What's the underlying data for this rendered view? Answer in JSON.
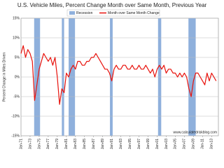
{
  "chart_data": {
    "type": "line",
    "title": "U.S. Vehicle Miles,  Percent Change Month over Same Month, Previous Year",
    "y_label": "Percent Change in Miles Driven",
    "source": "www.calculatedriskblog.com",
    "recession_name": "Recession",
    "recession_color": "#8fb0dc",
    "recessions": [
      [
        1973.9,
        1975.2
      ],
      [
        1980.0,
        1980.5
      ],
      [
        1981.5,
        1982.9
      ],
      [
        1990.6,
        1991.2
      ],
      [
        2001.2,
        2001.9
      ],
      [
        2007.9,
        2009.5
      ]
    ],
    "x": [
      1971,
      1971.5,
      1972,
      1972.5,
      1973,
      1973.5,
      1974,
      1974.5,
      1975,
      1975.5,
      1976,
      1976.5,
      1977,
      1977.5,
      1978,
      1978.5,
      1979,
      1979.5,
      1980,
      1980.5,
      1981,
      1981.5,
      1982,
      1982.5,
      1983,
      1983.5,
      1984,
      1984.5,
      1985,
      1985.5,
      1986,
      1986.5,
      1987,
      1987.5,
      1988,
      1988.5,
      1989,
      1989.5,
      1990,
      1990.5,
      1991,
      1991.5,
      1992,
      1992.5,
      1993,
      1993.5,
      1994,
      1994.5,
      1995,
      1995.5,
      1996,
      1996.5,
      1997,
      1997.5,
      1998,
      1998.5,
      1999,
      1999.5,
      2000,
      2000.5,
      2001,
      2001.5,
      2002,
      2002.5,
      2003,
      2003.5,
      2004,
      2004.5,
      2005,
      2005.5,
      2006,
      2006.5,
      2007,
      2007.5,
      2008,
      2008.5,
      2009,
      2009.5,
      2010,
      2010.5,
      2011,
      2011.5,
      2012,
      2012.5,
      2013,
      2013.5,
      2014
    ],
    "series": [
      {
        "name": "Month over Same Month Change",
        "color": "#e8120c",
        "values": [
          6,
          8,
          5,
          7,
          6,
          4,
          -6,
          -2,
          2,
          4,
          6,
          5,
          4,
          5,
          3,
          5,
          0,
          -7,
          -3,
          -4,
          1,
          0,
          2,
          3,
          2,
          4,
          4,
          3,
          3,
          4,
          4,
          5,
          5,
          6,
          5,
          4,
          3,
          2,
          2,
          1,
          -1,
          2,
          3,
          2,
          2,
          3,
          3,
          2,
          2,
          3,
          2,
          2,
          3,
          2,
          2,
          3,
          2,
          1,
          2,
          0,
          2,
          3,
          2,
          3,
          1,
          2,
          2,
          1,
          1,
          0,
          1,
          0,
          1,
          0,
          -3,
          -5,
          -1,
          1,
          1,
          0,
          -1,
          -2,
          1,
          -1,
          1,
          0,
          -1
        ]
      }
    ],
    "xlim": [
      1971,
      2014.5
    ],
    "xticks": [
      {
        "value": 1971,
        "label": "Jan-71"
      },
      {
        "value": 1973,
        "label": "Jan-73"
      },
      {
        "value": 1975,
        "label": "Jan-75"
      },
      {
        "value": 1977,
        "label": "Jan-77"
      },
      {
        "value": 1979,
        "label": "Jan-79"
      },
      {
        "value": 1981,
        "label": "Jan-81"
      },
      {
        "value": 1983,
        "label": "Jan-83"
      },
      {
        "value": 1985,
        "label": "Jan-85"
      },
      {
        "value": 1987,
        "label": "Jan-87"
      },
      {
        "value": 1989,
        "label": "Jan-89"
      },
      {
        "value": 1991,
        "label": "Jan-91"
      },
      {
        "value": 1993,
        "label": "Jan-93"
      },
      {
        "value": 1995,
        "label": "Jan-95"
      },
      {
        "value": 1997,
        "label": "Jan-97"
      },
      {
        "value": 1999,
        "label": "Jan-99"
      },
      {
        "value": 2001,
        "label": "Jan-01"
      },
      {
        "value": 2003,
        "label": "Jan-03"
      },
      {
        "value": 2005,
        "label": "Jan-05"
      },
      {
        "value": 2007,
        "label": "Jan-07"
      },
      {
        "value": 2009,
        "label": "Jan-09"
      },
      {
        "value": 2011,
        "label": "Jan-11"
      },
      {
        "value": 2013,
        "label": "Jan-13"
      }
    ],
    "ylim": [
      -15,
      15
    ],
    "yticks": [
      {
        "value": -15,
        "label": "-15%"
      },
      {
        "value": -10,
        "label": "-10%"
      },
      {
        "value": -5,
        "label": "-5%"
      },
      {
        "value": 0,
        "label": "0%"
      },
      {
        "value": 5,
        "label": "5%"
      },
      {
        "value": 10,
        "label": "10%"
      },
      {
        "value": 15,
        "label": "15%"
      }
    ],
    "grid": true
  }
}
